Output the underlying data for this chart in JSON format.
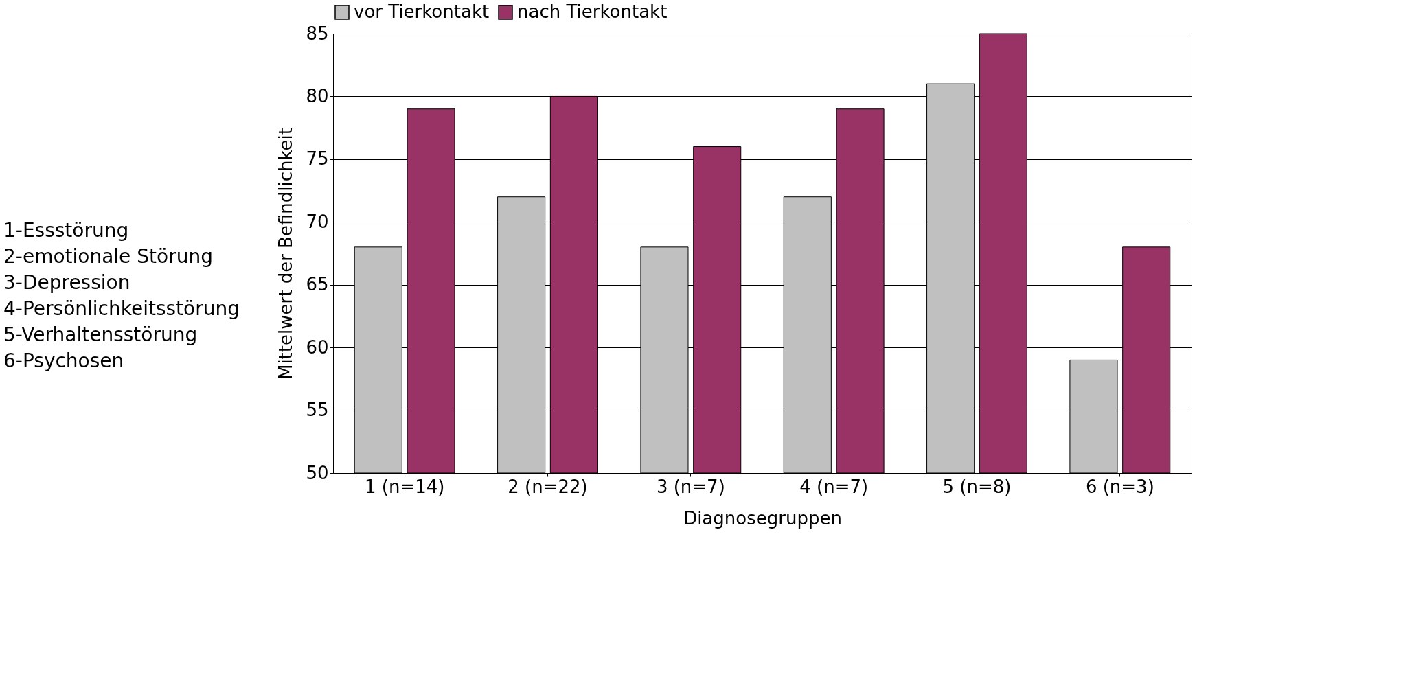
{
  "chart_data": {
    "type": "bar",
    "xlabel": "Diagnosegruppen",
    "ylabel": "Mittelwert der Befindlichkeit",
    "categories": [
      "1 (n=14)",
      "2 (n=22)",
      "3 (n=7)",
      "4 (n=7)",
      "5 (n=8)",
      "6 (n=3)"
    ],
    "series": [
      {
        "name": "vor Tierkontakt",
        "color": "#c0c0c0",
        "values": [
          68,
          72,
          68,
          72,
          81,
          59
        ]
      },
      {
        "name": "nach Tierkontakt",
        "color": "#993366",
        "values": [
          79,
          80,
          76,
          79,
          85,
          68
        ]
      }
    ],
    "ylim": [
      50,
      85
    ],
    "yticks": [
      50,
      55,
      60,
      65,
      70,
      75,
      80,
      85
    ],
    "grid": "y",
    "legend": "top",
    "annotations": [
      "1-Essstörung",
      "2-emotionale Störung",
      "3-Depression",
      "4-Persönlichkeitsstörung",
      "5-Verhaltensstörung",
      "6-Psychosen"
    ]
  }
}
